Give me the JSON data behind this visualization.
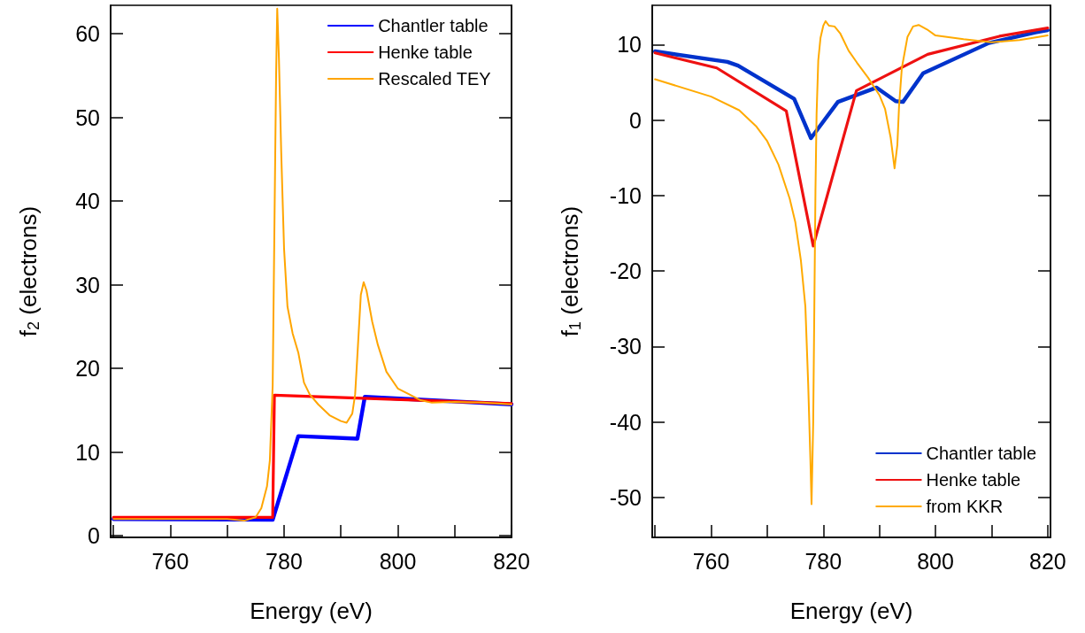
{
  "chart_data": [
    {
      "type": "line",
      "xlabel": "Energy (eV)",
      "ylabel": "f$_{2}$ (electrons)",
      "xlim": [
        749.5,
        820
      ],
      "ylim": [
        -0.2,
        63.4
      ],
      "xticks": [
        {
          "value": 750,
          "label": null
        },
        760,
        {
          "value": 770,
          "label": null
        },
        780,
        {
          "value": 790,
          "label": null
        },
        800,
        {
          "value": 810,
          "label": null
        },
        820
      ],
      "yticks": [
        0,
        10,
        20,
        30,
        40,
        50,
        60
      ],
      "grid": false,
      "legend": "top right",
      "marker": "none",
      "line_style": "solid",
      "series": [
        {
          "name": "Chantler table",
          "color": "#0000ff",
          "x": [
            750,
            778.0,
            782.5,
            792.9,
            794.2,
            820
          ],
          "values": [
            2.0,
            1.9,
            11.9,
            11.6,
            16.6,
            15.7
          ]
        },
        {
          "name": "Henke table",
          "color": "#ff0000",
          "x": [
            750,
            778.0,
            778.3,
            820
          ],
          "values": [
            2.2,
            2.2,
            16.8,
            15.8
          ]
        },
        {
          "name": "Rescaled TEY",
          "color": "#ffa500",
          "x": [
            750,
            770,
            773,
            775,
            776,
            777,
            777.5,
            778,
            778.3,
            778.6,
            778.8,
            779.1,
            779.5,
            780,
            780.6,
            781.5,
            782.5,
            783.5,
            784.5,
            786,
            788,
            790,
            791,
            792,
            792.5,
            793,
            793.5,
            794,
            794.5,
            795.5,
            796.5,
            798,
            800,
            802,
            804,
            806,
            810,
            815,
            820
          ],
          "values": [
            2.0,
            2.0,
            1.8,
            2.2,
            3.3,
            5.9,
            9,
            18,
            36.6,
            55,
            63.0,
            57,
            45.8,
            34.3,
            27.4,
            24.2,
            21.9,
            18.3,
            16.9,
            15.7,
            14.4,
            13.7,
            13.5,
            14.6,
            16.9,
            22.8,
            28.8,
            30.3,
            29.3,
            25.6,
            22.8,
            19.6,
            17.6,
            16.9,
            16.2,
            15.9,
            16.0,
            15.9,
            15.7
          ]
        }
      ]
    },
    {
      "type": "line",
      "xlabel": "Energy (eV)",
      "ylabel": "f$_{1}$ (electrons)",
      "xlim": [
        749.5,
        820.5
      ],
      "ylim": [
        -55.3,
        15.2
      ],
      "xticks": [
        {
          "value": 750,
          "label": null
        },
        760,
        {
          "value": 770,
          "label": null
        },
        780,
        {
          "value": 790,
          "label": null
        },
        800,
        {
          "value": 810,
          "label": null
        },
        820
      ],
      "yticks": [
        -50,
        -40,
        -30,
        -20,
        -10,
        0,
        10
      ],
      "grid": false,
      "legend": "bottom right",
      "marker": "none",
      "line_style": "solid",
      "series": [
        {
          "name": "Chantler table",
          "color": "#0033cc",
          "x": [
            750,
            762.9,
            764.8,
            774.8,
            777.8,
            782.6,
            789.5,
            792.9,
            794.2,
            797.8,
            809.5,
            817.8,
            820
          ],
          "values": [
            9.1,
            7.7,
            7.2,
            2.8,
            -2.4,
            2.4,
            4.3,
            2.5,
            2.4,
            6.2,
            10.2,
            11.6,
            11.9
          ]
        },
        {
          "name": "Henke table",
          "color": "#ee1111",
          "x": [
            750,
            761,
            773.4,
            778.2,
            785.9,
            798.6,
            811.4,
            820
          ],
          "values": [
            8.9,
            6.9,
            1.2,
            -16.7,
            3.9,
            8.7,
            11.1,
            12.2
          ]
        },
        {
          "name": "from KKR",
          "color": "#ffaa00",
          "x": [
            750,
            760,
            765,
            768,
            770,
            772,
            774,
            775,
            776,
            776.8,
            777.3,
            777.7,
            777.9,
            778.2,
            778.4,
            778.6,
            778.8,
            779.1,
            779.5,
            780,
            780.4,
            781,
            782,
            783,
            784.5,
            786,
            788,
            790,
            791,
            792,
            792.7,
            793.2,
            793.5,
            794,
            795,
            796,
            797,
            798.5,
            800,
            805,
            810,
            815,
            820
          ],
          "values": [
            5.4,
            3.1,
            1.3,
            -0.8,
            -2.8,
            -5.9,
            -10.4,
            -13.5,
            -18.6,
            -24.7,
            -34.9,
            -45.1,
            -50.9,
            -40,
            -24.7,
            -9.4,
            0.8,
            7.9,
            10.9,
            12.5,
            13.1,
            12.5,
            12.4,
            11.5,
            9.2,
            7.6,
            5.6,
            3.3,
            1.5,
            -2.3,
            -6.4,
            -3.3,
            1.8,
            6.9,
            11.0,
            12.4,
            12.6,
            12.0,
            11.2,
            10.7,
            10.3,
            10.6,
            11.2
          ]
        }
      ]
    }
  ]
}
